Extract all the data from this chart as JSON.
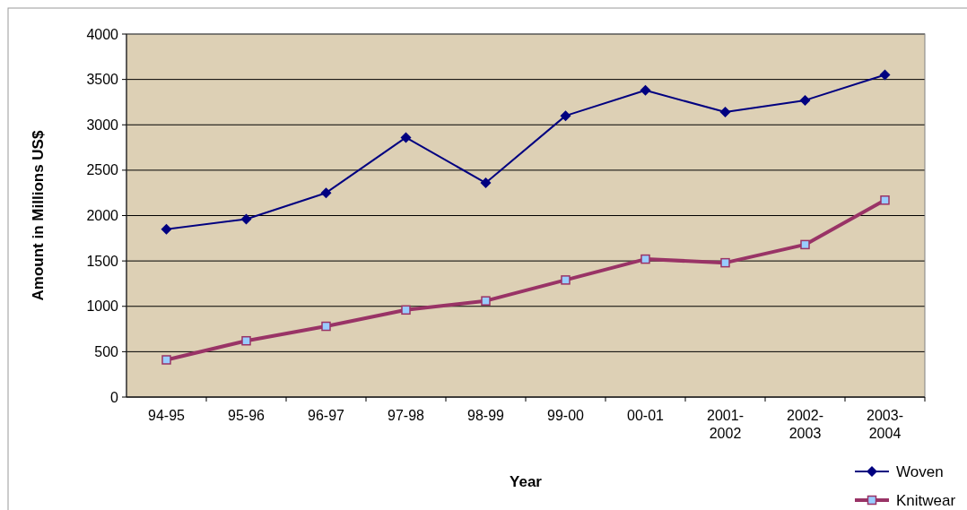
{
  "chart_data": {
    "type": "line",
    "xlabel": "Year",
    "ylabel": "Amount in Millions US$",
    "categories": [
      "94-95",
      "95-96",
      "96-97",
      "97-98",
      "98-99",
      "99-00",
      "00-01",
      "2001-2002",
      "2002-2003",
      "2003-2004"
    ],
    "series": [
      {
        "name": "Woven",
        "color": "#000080",
        "marker": "diamond",
        "values": [
          1850,
          1960,
          2250,
          2860,
          2360,
          3100,
          3380,
          3140,
          3270,
          3550
        ]
      },
      {
        "name": "Knitwear",
        "color": "#993366",
        "marker": "square",
        "values": [
          410,
          620,
          780,
          960,
          1060,
          1290,
          1520,
          1480,
          1680,
          2170
        ]
      }
    ],
    "ylim": [
      0,
      4000
    ],
    "yticks": [
      0,
      500,
      1000,
      1500,
      2000,
      2500,
      3000,
      3500,
      4000
    ],
    "grid": "y",
    "legend": "bottom right"
  }
}
